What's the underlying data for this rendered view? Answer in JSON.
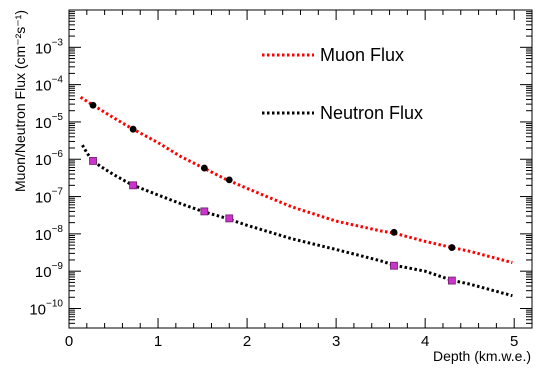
{
  "chart_data": {
    "type": "line",
    "xlabel": "Depth (km.w.e.)",
    "ylabel": "Muon/Neutron Flux (cm⁻²s⁻¹)",
    "xlim": [
      0,
      5.2
    ],
    "ylim": [
      3e-11,
      0.01
    ],
    "y_scale": "log",
    "x_ticks": [
      0,
      1,
      2,
      3,
      4,
      5
    ],
    "y_ticks": [
      -10,
      -9,
      -8,
      -7,
      -6,
      -5,
      -4,
      -3
    ],
    "y_tick_base": "10",
    "grid": false,
    "legend_position": "top-right",
    "series": [
      {
        "name": "Muon Flux",
        "style": "dotted",
        "color": "#ff0000",
        "marker_color": "#000000",
        "curve_x": [
          0.13,
          0.25,
          0.5,
          0.7,
          1.0,
          1.25,
          1.5,
          1.75,
          2.0,
          2.5,
          3.0,
          3.5,
          3.65,
          4.0,
          4.3,
          4.5,
          4.98
        ],
        "curve_y": [
          4.6e-05,
          3e-05,
          1.3e-05,
          6.8e-06,
          2.8e-06,
          1.2e-06,
          6e-07,
          3e-07,
          1.65e-07,
          5.3e-08,
          2.2e-08,
          1.2e-08,
          1.05e-08,
          6.3e-09,
          4.3e-09,
          3.4e-09,
          1.7e-09
        ],
        "points_x": [
          0.27,
          0.72,
          1.52,
          1.8,
          3.65,
          4.3
        ],
        "points_y": [
          2.8e-05,
          6.4e-06,
          5.8e-07,
          2.8e-07,
          1.1e-08,
          4.3e-09
        ]
      },
      {
        "name": "Neutron Flux",
        "style": "dotted",
        "color": "#000000",
        "marker_color": "#cc33cc",
        "curve_x": [
          0.15,
          0.2,
          0.25,
          0.35,
          0.5,
          0.7,
          1.0,
          1.25,
          1.5,
          1.75,
          2.0,
          2.5,
          3.0,
          3.5,
          3.65,
          4.0,
          4.3,
          4.5,
          4.98
        ],
        "curve_y": [
          2.4e-06,
          1.5e-06,
          1e-06,
          6.5e-07,
          3.9e-07,
          2.1e-07,
          1.1e-07,
          6.5e-08,
          4e-08,
          2.7e-08,
          1.7e-08,
          7.4e-09,
          3.8e-09,
          1.9e-09,
          1.45e-09,
          1e-09,
          5.7e-10,
          4.5e-10,
          2.2e-10
        ],
        "points_x": [
          0.27,
          0.72,
          1.52,
          1.8,
          3.65,
          4.3
        ],
        "points_y": [
          9e-07,
          2e-07,
          4e-08,
          2.6e-08,
          1.4e-09,
          5.6e-10
        ]
      }
    ]
  }
}
